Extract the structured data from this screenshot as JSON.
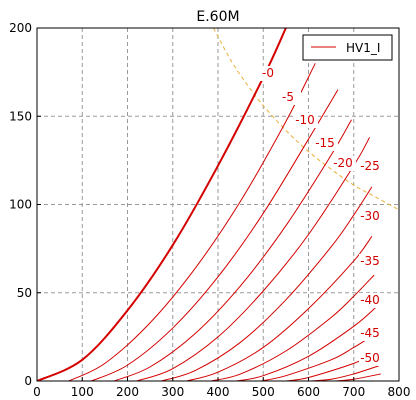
{
  "chart_data": {
    "type": "line",
    "title": "E.60M",
    "xlabel": "",
    "ylabel": "",
    "xlim": [
      0,
      800
    ],
    "ylim": [
      0,
      200
    ],
    "x_ticks": [
      "0",
      "100",
      "200",
      "300",
      "400",
      "500",
      "600",
      "700",
      "800"
    ],
    "y_ticks": [
      "0",
      "50",
      "100",
      "150",
      "200"
    ],
    "grid": true,
    "legend_position": "top-right",
    "legend": [
      "HV1_I"
    ],
    "line_color": "#d40000",
    "limit_color": "#e8b23a",
    "series": [
      {
        "label": "-0",
        "x": [
          0,
          100,
          200,
          300,
          400,
          500,
          550
        ],
        "y": [
          0,
          12,
          40,
          77,
          122,
          172,
          200
        ]
      },
      {
        "label": "-5",
        "x": [
          70,
          150,
          250,
          350,
          450,
          550,
          615
        ],
        "y": [
          0,
          10,
          33,
          64,
          102,
          147,
          180
        ]
      },
      {
        "label": "-10",
        "x": [
          120,
          200,
          300,
          400,
          500,
          600,
          665
        ],
        "y": [
          0,
          9,
          30,
          59,
          95,
          137,
          165
        ]
      },
      {
        "label": "-15",
        "x": [
          170,
          250,
          350,
          450,
          550,
          650,
          695
        ],
        "y": [
          0,
          8,
          27,
          54,
          88,
          128,
          148
        ]
      },
      {
        "label": "-20",
        "x": [
          220,
          300,
          400,
          500,
          600,
          700,
          735
        ],
        "y": [
          0,
          7,
          25,
          51,
          83,
          122,
          138
        ]
      },
      {
        "label": "-25",
        "x": [
          275,
          350,
          450,
          550,
          650,
          700,
          740
        ],
        "y": [
          0,
          6,
          22,
          46,
          76,
          94,
          110
        ]
      },
      {
        "label": "-30",
        "x": [
          330,
          400,
          500,
          600,
          700,
          740
        ],
        "y": [
          0,
          5,
          19,
          41,
          68,
          82
        ]
      },
      {
        "label": "-35",
        "x": [
          385,
          450,
          550,
          650,
          700,
          745
        ],
        "y": [
          0,
          4,
          17,
          36,
          48,
          60
        ]
      },
      {
        "label": "-40",
        "x": [
          440,
          500,
          600,
          700,
          750
        ],
        "y": [
          0,
          3,
          14,
          31,
          42
        ]
      },
      {
        "label": "-45",
        "x": [
          495,
          550,
          650,
          700,
          750
        ],
        "y": [
          0,
          3,
          12,
          19,
          27
        ]
      },
      {
        "label": "-50",
        "x": [
          550,
          600,
          700,
          750
        ],
        "y": [
          0,
          2,
          10,
          16
        ]
      },
      {
        "label": "",
        "x": [
          605,
          650,
          700,
          760
        ],
        "y": [
          0,
          1,
          4,
          9
        ]
      },
      {
        "label": "",
        "x": [
          660,
          700,
          760
        ],
        "y": [
          0,
          1,
          4
        ]
      }
    ],
    "plate_dissipation_limit": {
      "x": [
        390,
        430,
        470,
        500,
        550,
        600,
        650,
        700,
        750,
        800
      ],
      "y": [
        200,
        181,
        166,
        156,
        142,
        130,
        120,
        111,
        104,
        97
      ]
    }
  }
}
